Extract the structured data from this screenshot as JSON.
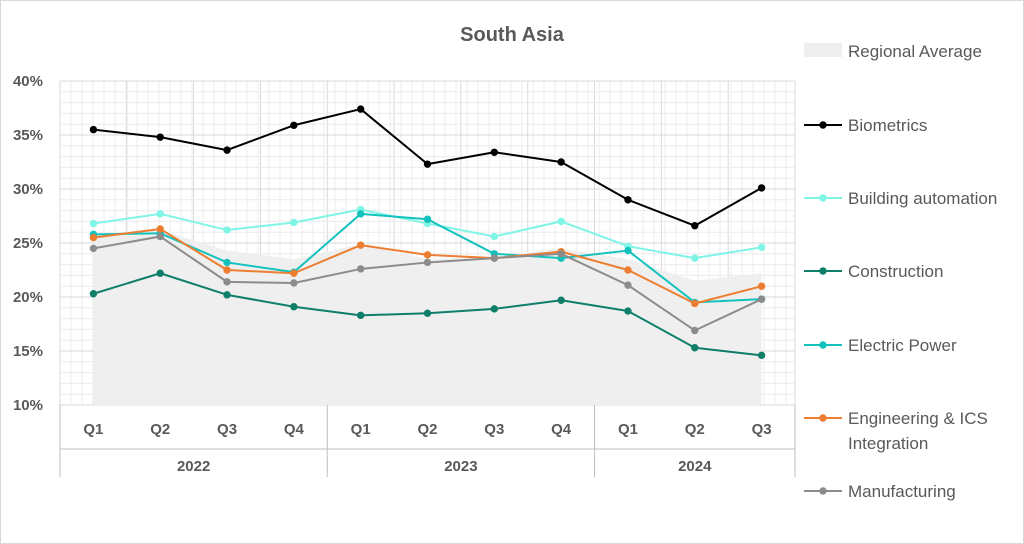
{
  "chart_data": {
    "type": "line",
    "title": "South Asia",
    "xlabel": "",
    "ylabel": "",
    "ylim": [
      0.1,
      0.4
    ],
    "yticks": [
      "10%",
      "15%",
      "20%",
      "25%",
      "30%",
      "35%",
      "40%"
    ],
    "ytick_values": [
      0.1,
      0.15,
      0.2,
      0.25,
      0.3,
      0.35,
      0.4
    ],
    "categories": [
      "Q1",
      "Q2",
      "Q3",
      "Q4",
      "Q1",
      "Q2",
      "Q3",
      "Q4",
      "Q1",
      "Q2",
      "Q3"
    ],
    "year_groups": [
      {
        "label": "2022",
        "quarters": 4
      },
      {
        "label": "2023",
        "quarters": 4
      },
      {
        "label": "2024",
        "quarters": 3
      }
    ],
    "area": {
      "name": "Regional Average",
      "color": "#efefef",
      "values": [
        0.258,
        0.262,
        0.243,
        0.235,
        0.249,
        0.235,
        0.237,
        0.245,
        0.235,
        0.215,
        0.222
      ]
    },
    "series": [
      {
        "name": "Biometrics",
        "color": "#000000",
        "marker_fill": "#000000",
        "values": [
          0.355,
          0.348,
          0.336,
          0.359,
          0.374,
          0.323,
          0.334,
          0.325,
          0.29,
          0.266,
          0.301
        ]
      },
      {
        "name": "Building automation",
        "color": "#7ff5e6",
        "marker_fill": "#7ff5e6",
        "values": [
          0.268,
          0.277,
          0.262,
          0.269,
          0.281,
          0.268,
          0.256,
          0.27,
          0.247,
          0.236,
          0.246
        ]
      },
      {
        "name": "Construction",
        "color": "#0f7f6a",
        "marker_fill": "#0f7f6a",
        "values": [
          0.203,
          0.222,
          0.202,
          0.191,
          0.183,
          0.185,
          0.189,
          0.197,
          0.187,
          0.153,
          0.146
        ]
      },
      {
        "name": "Electric Power",
        "color": "#14c2bd",
        "marker_fill": "#14c2bd",
        "values": [
          0.258,
          0.259,
          0.232,
          0.223,
          0.277,
          0.272,
          0.24,
          0.236,
          0.243,
          0.195,
          0.198
        ]
      },
      {
        "name": "Engineering & ICS Integration",
        "name_lines": [
          "Engineering & ICS",
          "Integration"
        ],
        "color": "#ed7d31",
        "marker_fill": "#ed7d31",
        "values": [
          0.255,
          0.263,
          0.225,
          0.222,
          0.248,
          0.239,
          0.236,
          0.242,
          0.225,
          0.194,
          0.21
        ]
      },
      {
        "name": "Manufacturing",
        "color": "#8c8c8c",
        "marker_fill": "#8c8c8c",
        "values": [
          0.245,
          0.256,
          0.214,
          0.213,
          0.226,
          0.232,
          0.236,
          0.24,
          0.211,
          0.169,
          0.198
        ]
      }
    ],
    "grid": true,
    "legend": "right"
  }
}
